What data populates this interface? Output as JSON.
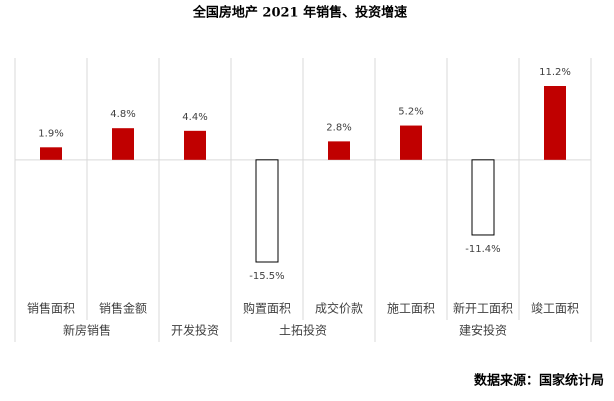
{
  "chart_data": {
    "type": "bar",
    "title": "全国房地产 2021 年销售、投资增速",
    "groups": [
      {
        "name": "新房销售",
        "categories": [
          "销售面积",
          "销售金额"
        ],
        "values": [
          1.9,
          4.8
        ],
        "value_labels": [
          "1.9%",
          "4.8%"
        ]
      },
      {
        "name": "开发投资",
        "categories": [
          null
        ],
        "values": [
          4.4
        ],
        "value_labels": [
          "4.4%"
        ]
      },
      {
        "name": "土拓投资",
        "categories": [
          "购置面积",
          "成交价款"
        ],
        "values": [
          -15.5,
          2.8
        ],
        "value_labels": [
          "-15.5%",
          "2.8%"
        ]
      },
      {
        "name": "建安投资",
        "categories": [
          "施工面积",
          "新开工面积",
          "竣工面积"
        ],
        "values": [
          5.2,
          -11.4,
          11.2
        ],
        "value_labels": [
          "5.2%",
          "-11.4%",
          "11.2%"
        ]
      }
    ],
    "color": "#c00000",
    "negative_color": "#ffffff",
    "source": "数据来源：国家统计局"
  }
}
